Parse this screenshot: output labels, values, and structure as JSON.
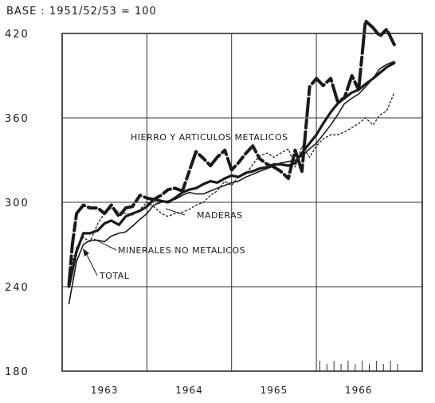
{
  "chart_data": {
    "type": "line",
    "base_note": "BASE  : 1951/52/53 = 100",
    "xlim": [
      1962.5,
      1966.75
    ],
    "ylim": [
      180,
      420
    ],
    "y_ticks": [
      {
        "value": 420,
        "label": "420"
      },
      {
        "value": 360,
        "label": "360"
      },
      {
        "value": 300,
        "label": "300"
      },
      {
        "value": 240,
        "label": "240"
      },
      {
        "value": 180,
        "label": "180"
      }
    ],
    "x_ticks": [
      {
        "value": 1963,
        "label": "1963"
      },
      {
        "value": 1964,
        "label": "1964"
      },
      {
        "value": 1965,
        "label": "1965"
      },
      {
        "value": 1966,
        "label": "1966"
      }
    ],
    "grid": true,
    "series": [
      {
        "name": "HIERRO Y ARTICULOS METALICOS",
        "style": "heavy-dashed",
        "x": [
          1962.58,
          1962.62,
          1962.67,
          1962.75,
          1962.83,
          1962.92,
          1963.0,
          1963.08,
          1963.17,
          1963.25,
          1963.33,
          1963.42,
          1963.5,
          1963.58,
          1963.67,
          1963.75,
          1963.83,
          1963.92,
          1964.0,
          1964.08,
          1964.17,
          1964.25,
          1964.33,
          1964.42,
          1964.5,
          1964.58,
          1964.67,
          1964.75,
          1964.83,
          1964.92,
          1965.0,
          1965.08,
          1965.17,
          1965.25,
          1965.33,
          1965.42,
          1965.5,
          1965.58,
          1965.67,
          1965.75,
          1965.83,
          1965.92,
          1966.0,
          1966.08,
          1966.17,
          1966.25,
          1966.33,
          1966.42
        ],
        "y": [
          241,
          270,
          292,
          298,
          296,
          296,
          292,
          298,
          290,
          296,
          297,
          305,
          303,
          302,
          305,
          309,
          310,
          308,
          322,
          336,
          331,
          326,
          332,
          337,
          323,
          328,
          335,
          340,
          331,
          327,
          325,
          322,
          317,
          337,
          322,
          382,
          388,
          383,
          388,
          372,
          374,
          390,
          380,
          429,
          424,
          418,
          423,
          412
        ]
      },
      {
        "name": "MADERAS",
        "style": "dotted",
        "x": [
          1962.58,
          1962.67,
          1962.75,
          1962.83,
          1962.92,
          1963.0,
          1963.08,
          1963.17,
          1963.25,
          1963.33,
          1963.42,
          1963.5,
          1963.58,
          1963.67,
          1963.75,
          1963.83,
          1963.92,
          1964.0,
          1964.08,
          1964.17,
          1964.25,
          1964.33,
          1964.42,
          1964.5,
          1964.58,
          1964.67,
          1964.75,
          1964.83,
          1964.92,
          1965.0,
          1965.08,
          1965.17,
          1965.25,
          1965.33,
          1965.42,
          1965.5,
          1965.58,
          1965.67,
          1965.75,
          1965.83,
          1965.92,
          1966.0,
          1966.08,
          1966.17,
          1966.25,
          1966.33,
          1966.42
        ],
        "y": [
          248,
          268,
          275,
          272,
          285,
          292,
          296,
          293,
          292,
          291,
          295,
          300,
          297,
          292,
          290,
          292,
          293,
          295,
          298,
          300,
          305,
          308,
          315,
          312,
          318,
          320,
          327,
          333,
          335,
          332,
          335,
          338,
          325,
          340,
          332,
          340,
          345,
          348,
          348,
          350,
          353,
          356,
          360,
          355,
          362,
          365,
          378
        ]
      },
      {
        "name": "MINERALES NO METALICOS",
        "style": "thin",
        "x": [
          1962.58,
          1962.67,
          1962.75,
          1962.83,
          1962.92,
          1963.0,
          1963.08,
          1963.17,
          1963.25,
          1963.33,
          1963.42,
          1963.5,
          1963.58,
          1963.67,
          1963.75,
          1963.83,
          1963.92,
          1964.0,
          1964.08,
          1964.17,
          1964.25,
          1964.33,
          1964.42,
          1964.5,
          1964.58,
          1964.67,
          1964.75,
          1964.83,
          1964.92,
          1965.0,
          1965.08,
          1965.17,
          1965.25,
          1965.33,
          1965.42,
          1965.5,
          1965.58,
          1965.67,
          1965.75,
          1965.83,
          1965.92,
          1966.0,
          1966.08,
          1966.17,
          1966.25,
          1966.33,
          1966.42
        ],
        "y": [
          228,
          258,
          270,
          273,
          273,
          272,
          276,
          278,
          279,
          283,
          288,
          292,
          298,
          300,
          301,
          302,
          305,
          307,
          306,
          306,
          308,
          310,
          312,
          314,
          315,
          318,
          320,
          322,
          324,
          326,
          328,
          329,
          330,
          333,
          338,
          342,
          348,
          355,
          362,
          370,
          374,
          377,
          382,
          388,
          395,
          398,
          400
        ]
      },
      {
        "name": "TOTAL",
        "style": "heavy",
        "x": [
          1962.58,
          1962.67,
          1962.75,
          1962.83,
          1962.92,
          1963.0,
          1963.08,
          1963.17,
          1963.25,
          1963.33,
          1963.42,
          1963.5,
          1963.58,
          1963.67,
          1963.75,
          1963.83,
          1963.92,
          1964.0,
          1964.08,
          1964.17,
          1964.25,
          1964.33,
          1964.42,
          1964.5,
          1964.58,
          1964.67,
          1964.75,
          1964.83,
          1964.92,
          1965.0,
          1965.08,
          1965.17,
          1965.25,
          1965.33,
          1965.42,
          1965.5,
          1965.58,
          1965.67,
          1965.75,
          1965.83,
          1965.92,
          1966.0,
          1966.08,
          1966.17,
          1966.25,
          1966.33,
          1966.42
        ],
        "y": [
          240,
          265,
          278,
          278,
          280,
          285,
          287,
          284,
          290,
          292,
          294,
          297,
          302,
          301,
          300,
          303,
          307,
          309,
          310,
          313,
          315,
          314,
          317,
          319,
          318,
          321,
          322,
          324,
          325,
          327,
          327,
          326,
          328,
          335,
          342,
          348,
          356,
          364,
          370,
          374,
          378,
          380,
          384,
          388,
          392,
          396,
          399
        ]
      }
    ],
    "annotations": [
      {
        "text": "HIERRO Y ARTICULOS METALICOS",
        "series": "HIERRO Y ARTICULOS METALICOS"
      },
      {
        "text": "MADERAS",
        "series": "MADERAS"
      },
      {
        "text": "MINERALES NO METALICOS",
        "series": "MINERALES NO METALICOS"
      },
      {
        "text": "TOTAL",
        "series": "TOTAL"
      }
    ]
  }
}
